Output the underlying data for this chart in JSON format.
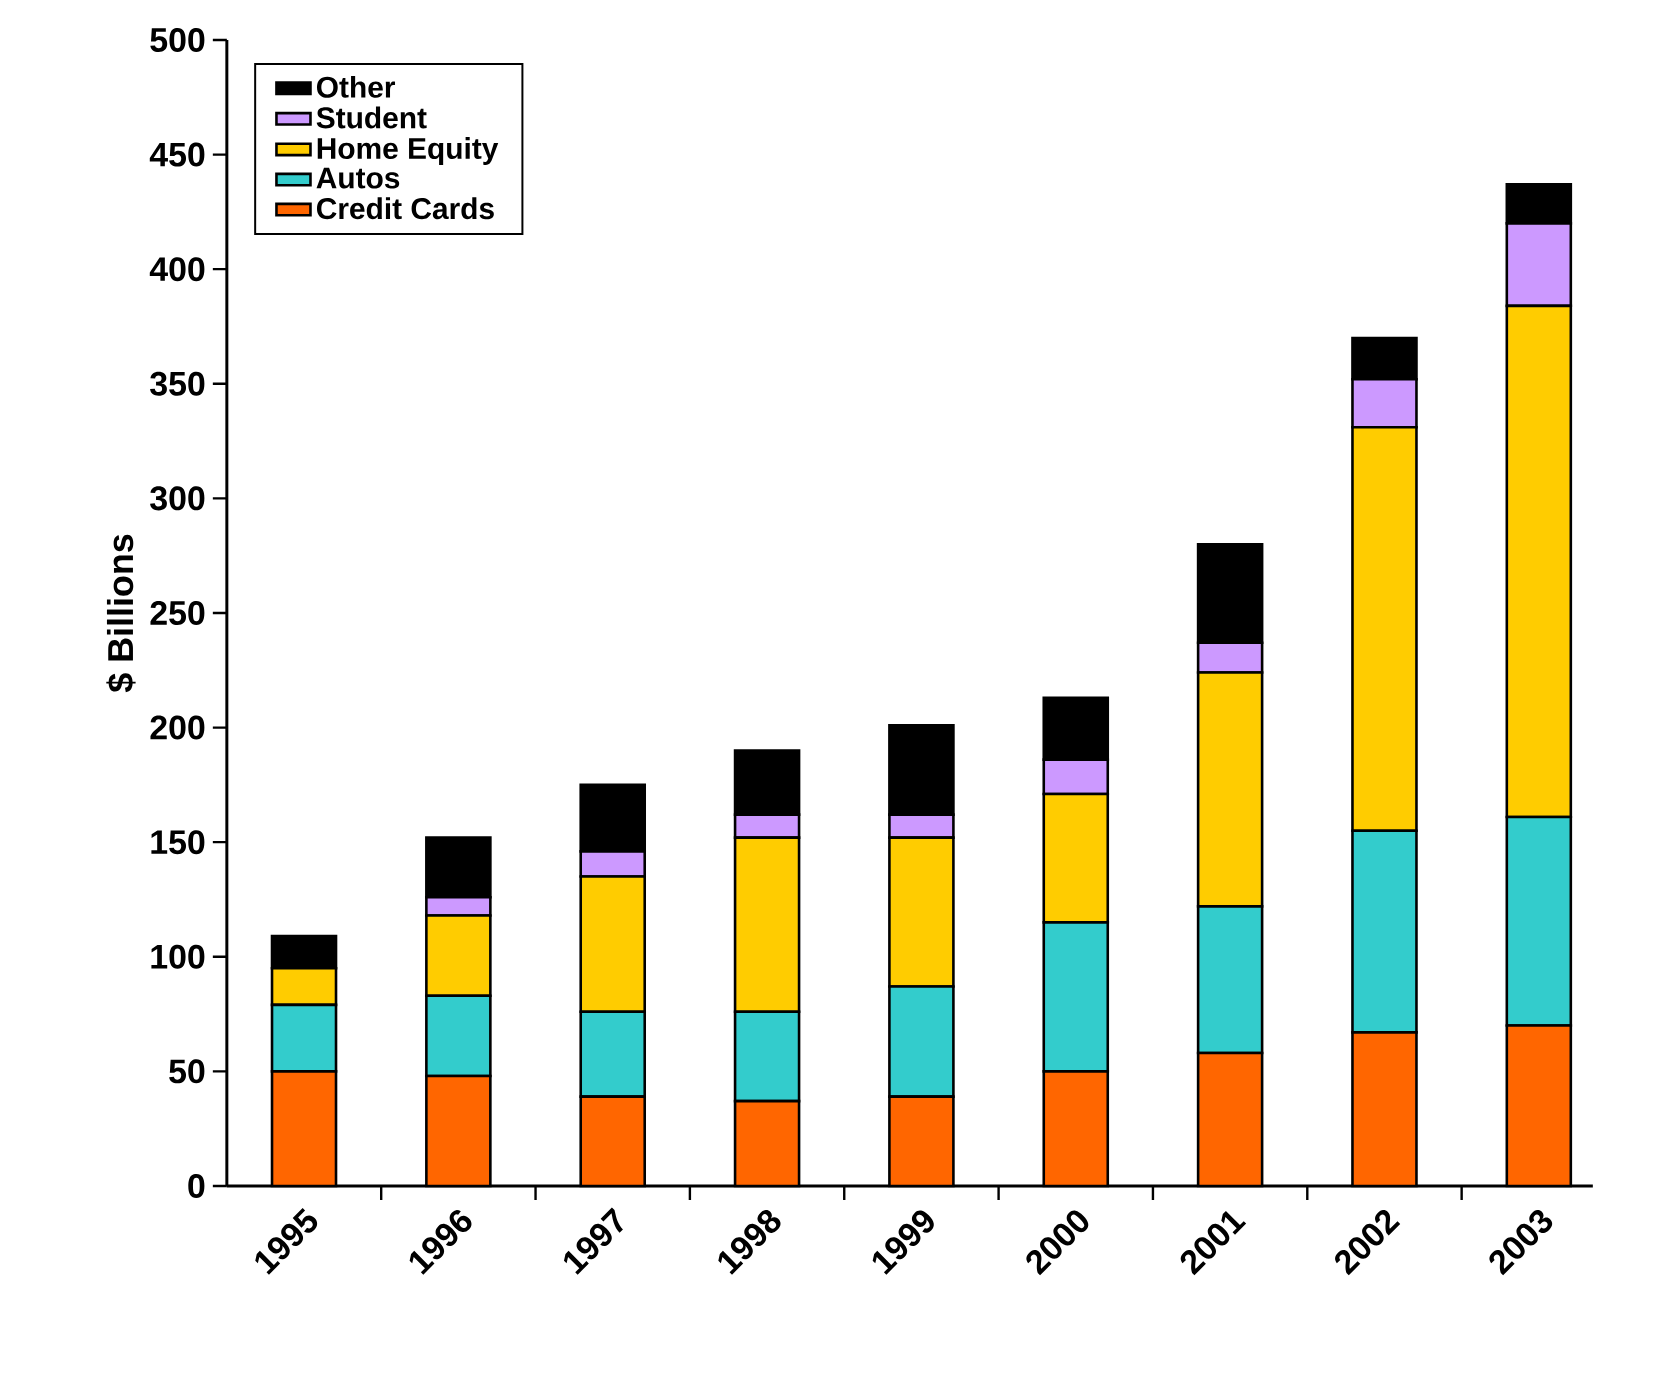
{
  "chart_data": {
    "type": "bar",
    "stacked": true,
    "ylabel": "$ Billions",
    "categories": [
      "1995",
      "1996",
      "1997",
      "1998",
      "1999",
      "2000",
      "2001",
      "2002",
      "2003"
    ],
    "series": [
      {
        "name": "Credit Cards",
        "color": "#ff6600",
        "values": [
          50,
          48,
          39,
          37,
          39,
          50,
          58,
          67,
          70
        ]
      },
      {
        "name": "Autos",
        "color": "#33cccc",
        "values": [
          29,
          35,
          37,
          39,
          48,
          65,
          64,
          88,
          91
        ]
      },
      {
        "name": "Home Equity",
        "color": "#ffcc00",
        "values": [
          16,
          35,
          59,
          76,
          65,
          56,
          102,
          176,
          223
        ]
      },
      {
        "name": "Student",
        "color": "#cc99ff",
        "values": [
          null,
          8,
          11,
          10,
          10,
          15,
          13,
          21,
          36
        ]
      },
      {
        "name": "Other",
        "color": "#000000",
        "values": [
          14,
          26,
          29,
          28,
          39,
          27,
          43,
          18,
          17
        ]
      }
    ],
    "ylim": [
      0,
      500
    ],
    "yticks": [
      0,
      50,
      100,
      150,
      200,
      250,
      300,
      350,
      400,
      450,
      500
    ],
    "grid": false,
    "legend": "top left"
  }
}
